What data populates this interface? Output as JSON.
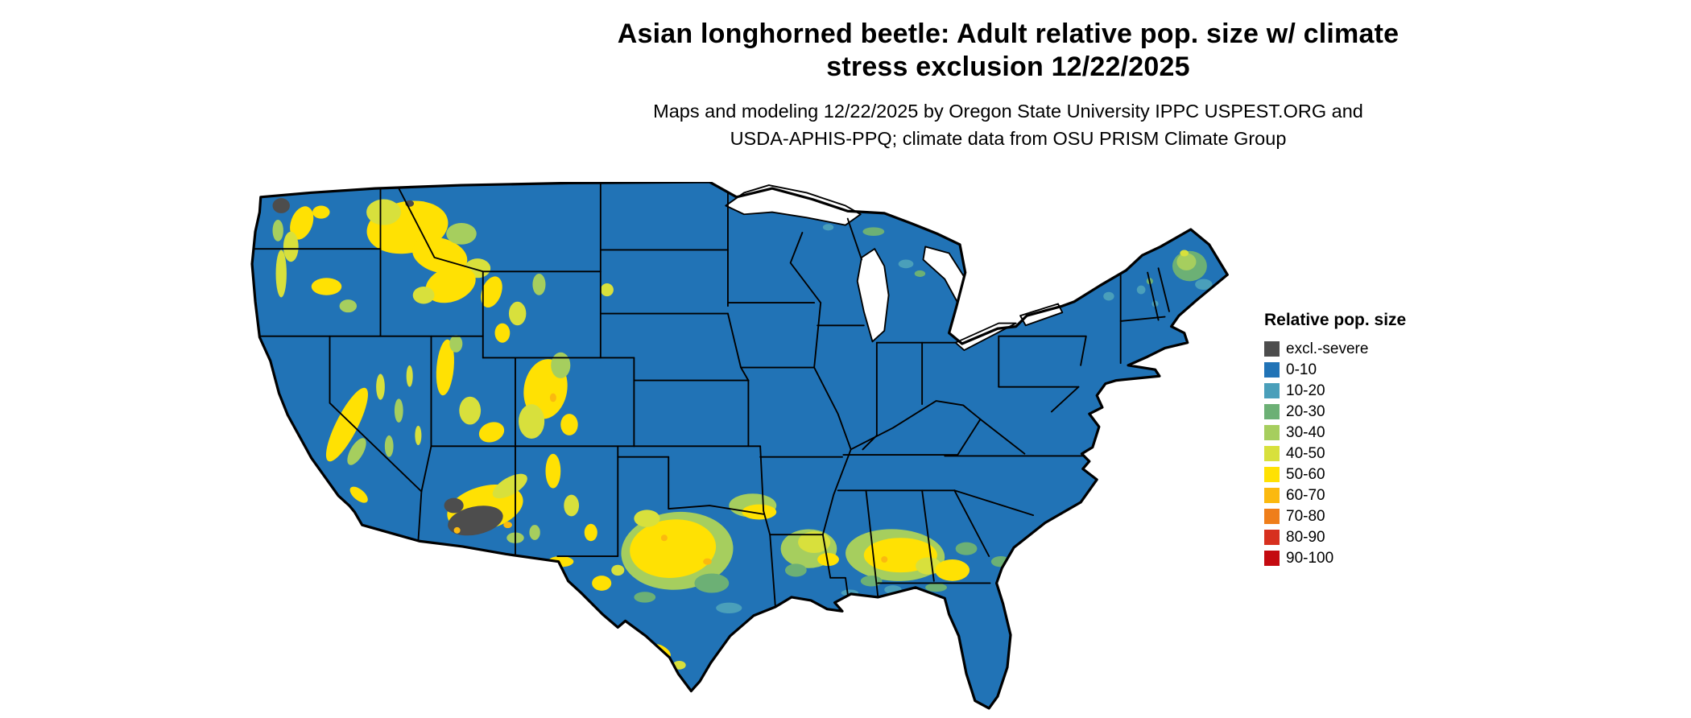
{
  "header": {
    "title_line1": "Asian longhorned beetle: Adult relative pop. size w/ climate",
    "title_line2": "stress exclusion 12/22/2025",
    "subtitle_line1": "Maps and modeling 12/22/2025 by Oregon State University IPPC USPEST.ORG and",
    "subtitle_line2": "USDA-APHIS-PPQ; climate data from OSU PRISM Climate Group"
  },
  "legend": {
    "title": "Relative pop. size",
    "items": [
      {
        "label": "excl.-severe",
        "color": "#4d4d4d"
      },
      {
        "label": "0-10",
        "color": "#2173b6"
      },
      {
        "label": "10-20",
        "color": "#4a9fba"
      },
      {
        "label": "20-30",
        "color": "#6cb075"
      },
      {
        "label": "30-40",
        "color": "#a6ce5e"
      },
      {
        "label": "40-50",
        "color": "#d8e03c"
      },
      {
        "label": "50-60",
        "color": "#ffe103"
      },
      {
        "label": "60-70",
        "color": "#fbb90f"
      },
      {
        "label": "70-80",
        "color": "#ef7e1a"
      },
      {
        "label": "80-90",
        "color": "#d7301f"
      },
      {
        "label": "90-100",
        "color": "#c40a10"
      }
    ]
  }
}
